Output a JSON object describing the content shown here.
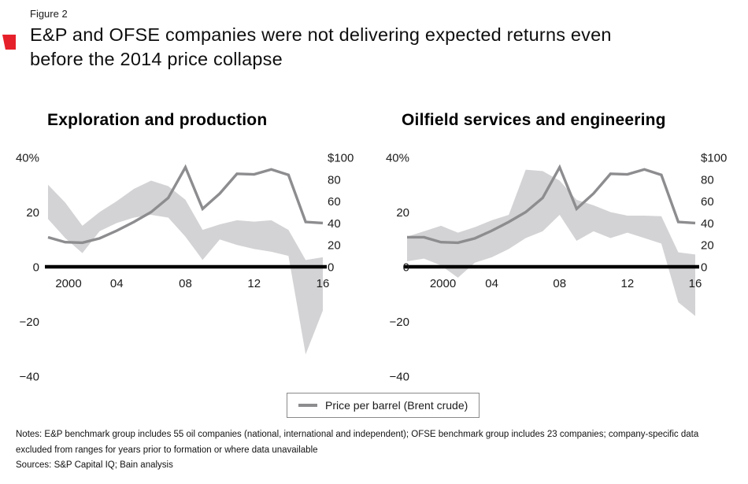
{
  "figure": {
    "label": "Figure 2",
    "title_line1": "E&P and OFSE companies were not delivering expected returns even",
    "title_line2": "before the 2014 price collapse"
  },
  "legend": {
    "price_line_label": "Price per barrel (Brent crude)"
  },
  "notes": {
    "notes_text": "Notes: E&P benchmark group includes 55 oil companies (national, international and independent); OFSE benchmark group includes 23 companies; company-specific data excluded from ranges for years prior to formation or where data unavailable",
    "sources_text": "Sources: S&P Capital IQ; Bain analysis"
  },
  "colors": {
    "accent_red": "#e6202a",
    "band_gray": "#d3d3d5",
    "line_gray": "#8d8d90",
    "axis_black": "#000000"
  },
  "chart_data": [
    {
      "type": "area",
      "title": "Exploration and production",
      "x": [
        2000,
        2001,
        2002,
        2003,
        2004,
        2005,
        2006,
        2007,
        2008,
        2009,
        2010,
        2011,
        2012,
        2013,
        2014,
        2015,
        2016
      ],
      "series": [
        {
          "name": "E&P benchmark return range (top)",
          "axis": "left",
          "unit": "%",
          "values": [
            30,
            23.5,
            15,
            20,
            24,
            28.5,
            31.5,
            29.5,
            24.5,
            13.5,
            15.5,
            17,
            16.5,
            17,
            13.5,
            2.5,
            3.5
          ]
        },
        {
          "name": "E&P benchmark return range (bottom)",
          "axis": "left",
          "unit": "%",
          "values": [
            17.5,
            10.5,
            5,
            13,
            16,
            18,
            19,
            18,
            11,
            2.5,
            10,
            8,
            6.5,
            5.5,
            4,
            -32,
            -16
          ]
        },
        {
          "name": "Price per barrel (Brent crude)",
          "axis": "right",
          "unit": "$",
          "values": [
            27,
            22.5,
            22,
            26,
            33,
            41,
            50,
            63,
            91,
            53,
            67,
            85,
            84.5,
            89,
            84,
            41,
            40
          ]
        }
      ],
      "left_axis": {
        "ticks": [
          "40%",
          "20",
          "0",
          "−20",
          "−40"
        ],
        "values": [
          40,
          20,
          0,
          -20,
          -40
        ],
        "range": [
          -40,
          40
        ]
      },
      "right_axis": {
        "ticks": [
          "$100",
          "80",
          "60",
          "40",
          "20",
          "0"
        ],
        "values": [
          100,
          80,
          60,
          40,
          20,
          0
        ],
        "range": [
          0,
          100
        ]
      },
      "x_ticks": [
        "2000",
        "04",
        "08",
        "12",
        "16"
      ],
      "x_tick_years": [
        2000,
        2004,
        2008,
        2012,
        2016
      ],
      "grid": false,
      "legend_position": "bottom"
    },
    {
      "type": "area",
      "title": "Oilfield services and engineering",
      "x": [
        1999,
        2000,
        2001,
        2002,
        2003,
        2004,
        2005,
        2006,
        2007,
        2008,
        2009,
        2010,
        2011,
        2012,
        2013,
        2014,
        2015,
        2016
      ],
      "series": [
        {
          "name": "OFSE benchmark return range (top)",
          "axis": "left",
          "unit": "%",
          "values": [
            11,
            13,
            15,
            12.5,
            14.5,
            17,
            19,
            35.5,
            35,
            31.5,
            24.5,
            22.5,
            20,
            18.7,
            18.7,
            18.5,
            5.3,
            4.5
          ]
        },
        {
          "name": "OFSE benchmark return range (bottom)",
          "axis": "left",
          "unit": "%",
          "values": [
            2,
            3,
            0.5,
            -4,
            1.5,
            3.5,
            6.5,
            10.5,
            13,
            19,
            9.5,
            13,
            10.5,
            12.5,
            10.5,
            8.5,
            -13,
            -18
          ]
        },
        {
          "name": "Price per barrel (Brent crude)",
          "axis": "right",
          "unit": "$",
          "values": [
            27,
            27,
            22.5,
            22,
            26,
            33,
            41,
            50,
            63,
            91,
            53,
            67,
            85,
            84.5,
            89,
            84,
            41,
            40
          ]
        }
      ],
      "left_axis": {
        "ticks": [
          "40%",
          "20",
          "0",
          "−20",
          "−40"
        ],
        "values": [
          40,
          20,
          0,
          -20,
          -40
        ],
        "range": [
          -40,
          40
        ]
      },
      "right_axis": {
        "ticks": [
          "$100",
          "80",
          "60",
          "40",
          "20",
          "0"
        ],
        "values": [
          100,
          80,
          60,
          40,
          20,
          0
        ],
        "range": [
          0,
          100
        ]
      },
      "x_ticks": [
        "2000",
        "04",
        "08",
        "12",
        "16"
      ],
      "x_tick_years": [
        2000,
        2004,
        2008,
        2012,
        2016
      ],
      "grid": false,
      "legend_position": "bottom"
    }
  ]
}
